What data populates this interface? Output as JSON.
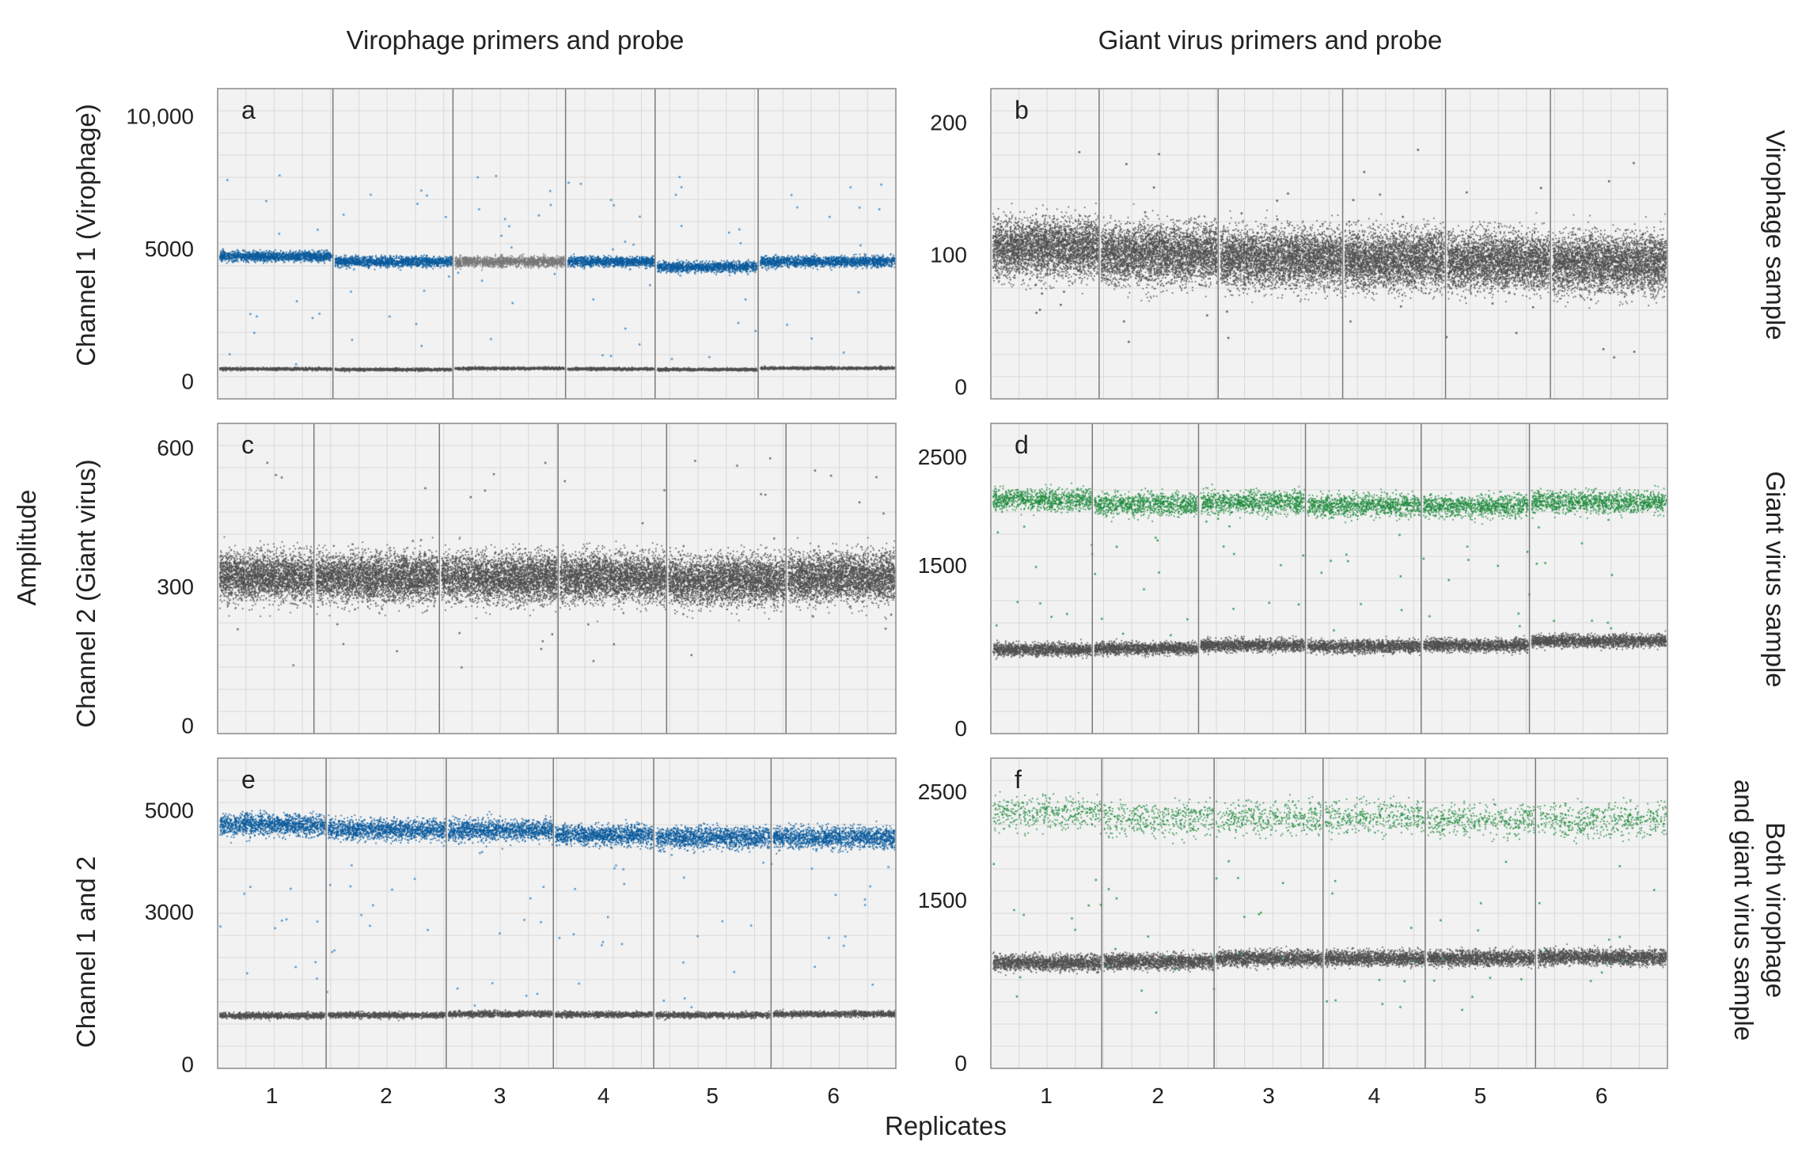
{
  "column_titles": [
    "Virophage primers and probe",
    "Giant virus primers and probe"
  ],
  "row_labels": [
    "Channel 1 (Virophage)",
    "Channel 2 (Giant virus)",
    "Channel 1 and 2"
  ],
  "side_labels": [
    [
      "Virophage sample"
    ],
    [
      "Giant virus sample"
    ],
    [
      "Both virophage",
      "and giant virus sample"
    ]
  ],
  "y_axis_label": "Amplitude",
  "x_axis_label": "Replicates",
  "replicate_labels": [
    "1",
    "2",
    "3",
    "4",
    "5",
    "6"
  ],
  "colors": {
    "virophage_blue": "#0a5a9c",
    "giant_green": "#1e8a3c",
    "negative_gray": "#4e4e4e",
    "plot_bg": "#f2f2f2",
    "grid": "#d9d9d9",
    "divider": "#7a7a7a"
  },
  "chart_data": [
    {
      "type": "scatter",
      "panel": "a",
      "title": "Virophage primers and probe — Channel 1 (Virophage)",
      "ylim": [
        -700,
        11000
      ],
      "y_ticks": [
        0,
        5000,
        10000
      ],
      "y_tick_labels": [
        "0",
        "5000",
        "10,000"
      ],
      "replicate_bounds": [
        0,
        0.17,
        0.347,
        0.513,
        0.645,
        0.797,
        1
      ],
      "clusters": [
        {
          "name": "positive",
          "color": "#0a5a9c",
          "centers": [
            4700,
            4500,
            4500,
            4500,
            4300,
            4500
          ],
          "override_colors": [
            null,
            null,
            "#777777",
            null,
            null,
            null
          ],
          "spread": 150,
          "density": 1400
        },
        {
          "name": "negative",
          "color": "#4e4e4e",
          "centers": [
            450,
            430,
            470,
            450,
            430,
            480
          ],
          "spread": 40,
          "density": 900
        }
      ],
      "rain": {
        "color": "#4a90c8",
        "per_replicate": 15,
        "min": 600,
        "max": 7800
      }
    },
    {
      "type": "scatter",
      "panel": "b",
      "title": "Giant virus primers and probe — Channel 1 (Virophage)",
      "ylim": [
        -10,
        225
      ],
      "y_ticks": [
        0,
        100,
        200
      ],
      "y_tick_labels": [
        "0",
        "100",
        "200"
      ],
      "replicate_bounds": [
        0,
        0.16,
        0.336,
        0.52,
        0.672,
        0.827,
        1
      ],
      "clusters": [
        {
          "name": "negative",
          "color": "#4e4e4e",
          "centers": [
            105,
            100,
            97,
            96,
            95,
            93
          ],
          "spread": 17,
          "density": 3400
        }
      ],
      "rain": {
        "color": "#555555",
        "per_replicate": 10,
        "min": 20,
        "max": 185
      }
    },
    {
      "type": "scatter",
      "panel": "c",
      "title": "Virophage primers and probe — Channel 2 (Giant virus)",
      "ylim": [
        -20,
        650
      ],
      "y_ticks": [
        0,
        300,
        600
      ],
      "y_tick_labels": [
        "0",
        "300",
        "600"
      ],
      "replicate_bounds": [
        0,
        0.142,
        0.327,
        0.502,
        0.662,
        0.838,
        1
      ],
      "clusters": [
        {
          "name": "negative",
          "color": "#4e4e4e",
          "centers": [
            320,
            318,
            318,
            318,
            312,
            318
          ],
          "spread": 40,
          "density": 3200
        }
      ],
      "rain": {
        "color": "#666666",
        "per_replicate": 10,
        "min": 120,
        "max": 600
      }
    },
    {
      "type": "scatter",
      "panel": "d",
      "title": "Giant virus primers and probe — Channel 2 (Giant virus)",
      "ylim": [
        -60,
        2800
      ],
      "y_ticks": [
        0,
        1500,
        2500
      ],
      "y_tick_labels": [
        "0",
        "1500",
        "2500"
      ],
      "replicate_bounds": [
        0,
        0.15,
        0.307,
        0.465,
        0.636,
        0.796,
        1
      ],
      "clusters": [
        {
          "name": "positive",
          "color": "#1e8a3c",
          "centers": [
            2100,
            2060,
            2080,
            2050,
            2040,
            2080
          ],
          "spread": 80,
          "density": 1000
        },
        {
          "name": "negative",
          "color": "#4e4e4e",
          "centers": [
            720,
            730,
            760,
            750,
            760,
            800
          ],
          "spread": 45,
          "density": 1500
        }
      ],
      "rain": {
        "color": "#2f9a4c",
        "per_replicate": 10,
        "min": 850,
        "max": 1950
      }
    },
    {
      "type": "scatter",
      "panel": "e",
      "title": "Virophage primers and probe — Channel 1 and 2",
      "ylim": [
        -100,
        6000
      ],
      "y_ticks": [
        0,
        3000,
        5000
      ],
      "y_tick_labels": [
        "0",
        "3000",
        "5000"
      ],
      "replicate_bounds": [
        0,
        0.16,
        0.337,
        0.495,
        0.643,
        0.816,
        1
      ],
      "clusters": [
        {
          "name": "positive",
          "color": "#0a5a9c",
          "centers": [
            4700,
            4600,
            4600,
            4500,
            4450,
            4450
          ],
          "spread": 160,
          "density": 1400
        },
        {
          "name": "negative",
          "color": "#4e4e4e",
          "centers": [
            950,
            960,
            980,
            970,
            960,
            980
          ],
          "spread": 45,
          "density": 1000
        }
      ],
      "rain": {
        "color": "#4a90c8",
        "per_replicate": 12,
        "min": 1100,
        "max": 4200
      }
    },
    {
      "type": "scatter",
      "panel": "f",
      "title": "Giant virus primers and probe — Channel 1 and 2",
      "ylim": [
        -60,
        2800
      ],
      "y_ticks": [
        0,
        1500,
        2500
      ],
      "y_tick_labels": [
        "0",
        "1500",
        "2500"
      ],
      "replicate_bounds": [
        0,
        0.164,
        0.33,
        0.491,
        0.642,
        0.805,
        1
      ],
      "clusters": [
        {
          "name": "positive",
          "color": "#1e8a3c",
          "centers": [
            2300,
            2250,
            2250,
            2260,
            2230,
            2230
          ],
          "spread": 120,
          "density": 420
        },
        {
          "name": "negative",
          "color": "#4e4e4e",
          "centers": [
            920,
            930,
            960,
            960,
            960,
            970
          ],
          "spread": 55,
          "density": 1600
        }
      ],
      "rain": {
        "color": "#2f9a4c",
        "per_replicate": 10,
        "min": 450,
        "max": 1900
      }
    }
  ],
  "panel_letters": [
    "a",
    "b",
    "c",
    "d",
    "e",
    "f"
  ]
}
